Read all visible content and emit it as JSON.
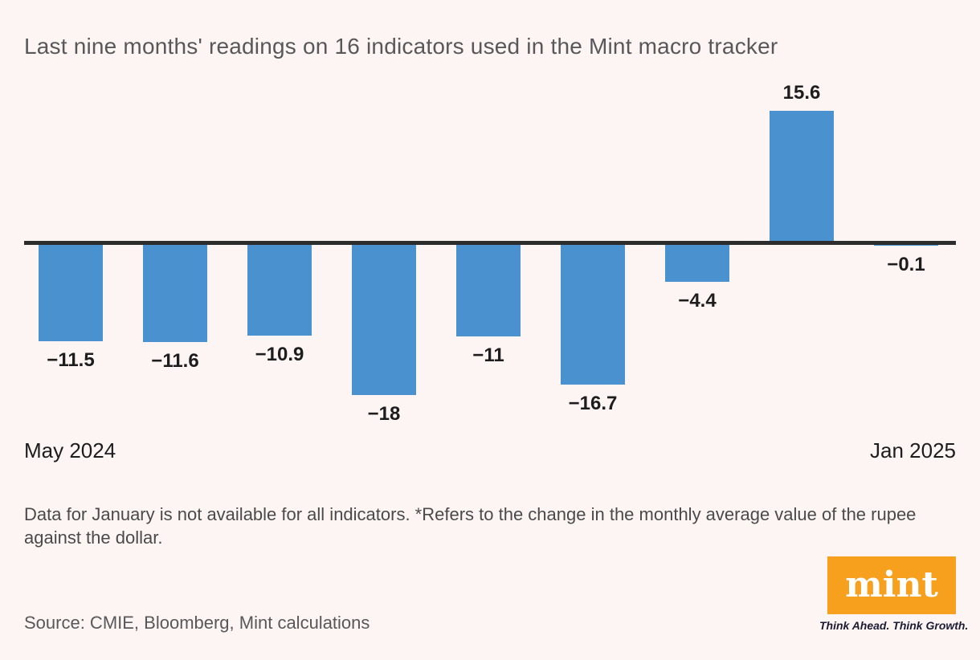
{
  "title": "Last nine months' readings on 16 indicators used in the Mint macro tracker",
  "chart_data": {
    "type": "bar",
    "values": [
      -11.5,
      -11.6,
      -10.9,
      -18,
      -11,
      -16.7,
      -4.4,
      15.6,
      -0.1
    ],
    "data_labels": [
      "−11.5",
      "−11.6",
      "−10.9",
      "−18",
      "−11",
      "−16.7",
      "−4.4",
      "15.6",
      "−0.1"
    ],
    "x_axis_start_label": "May 2024",
    "x_axis_end_label": "Jan 2025",
    "title": "Last nine months' readings on 16 indicators used in the Mint macro tracker",
    "xlabel": "",
    "ylabel": "",
    "baseline": 0,
    "grid": false,
    "legend": false,
    "bar_color": "#4A92CF",
    "axis_color": "#2D2D2D",
    "background_color": "#FDF5F3"
  },
  "footnote": "Data for January is not available for all indicators. *Refers to the change in the monthly average value of the rupee against the dollar.",
  "source": "Source: CMIE, Bloomberg, Mint calculations",
  "logo": {
    "text": "mint",
    "tagline": "Think Ahead. Think Growth.",
    "bg_color": "#F6A01E"
  }
}
